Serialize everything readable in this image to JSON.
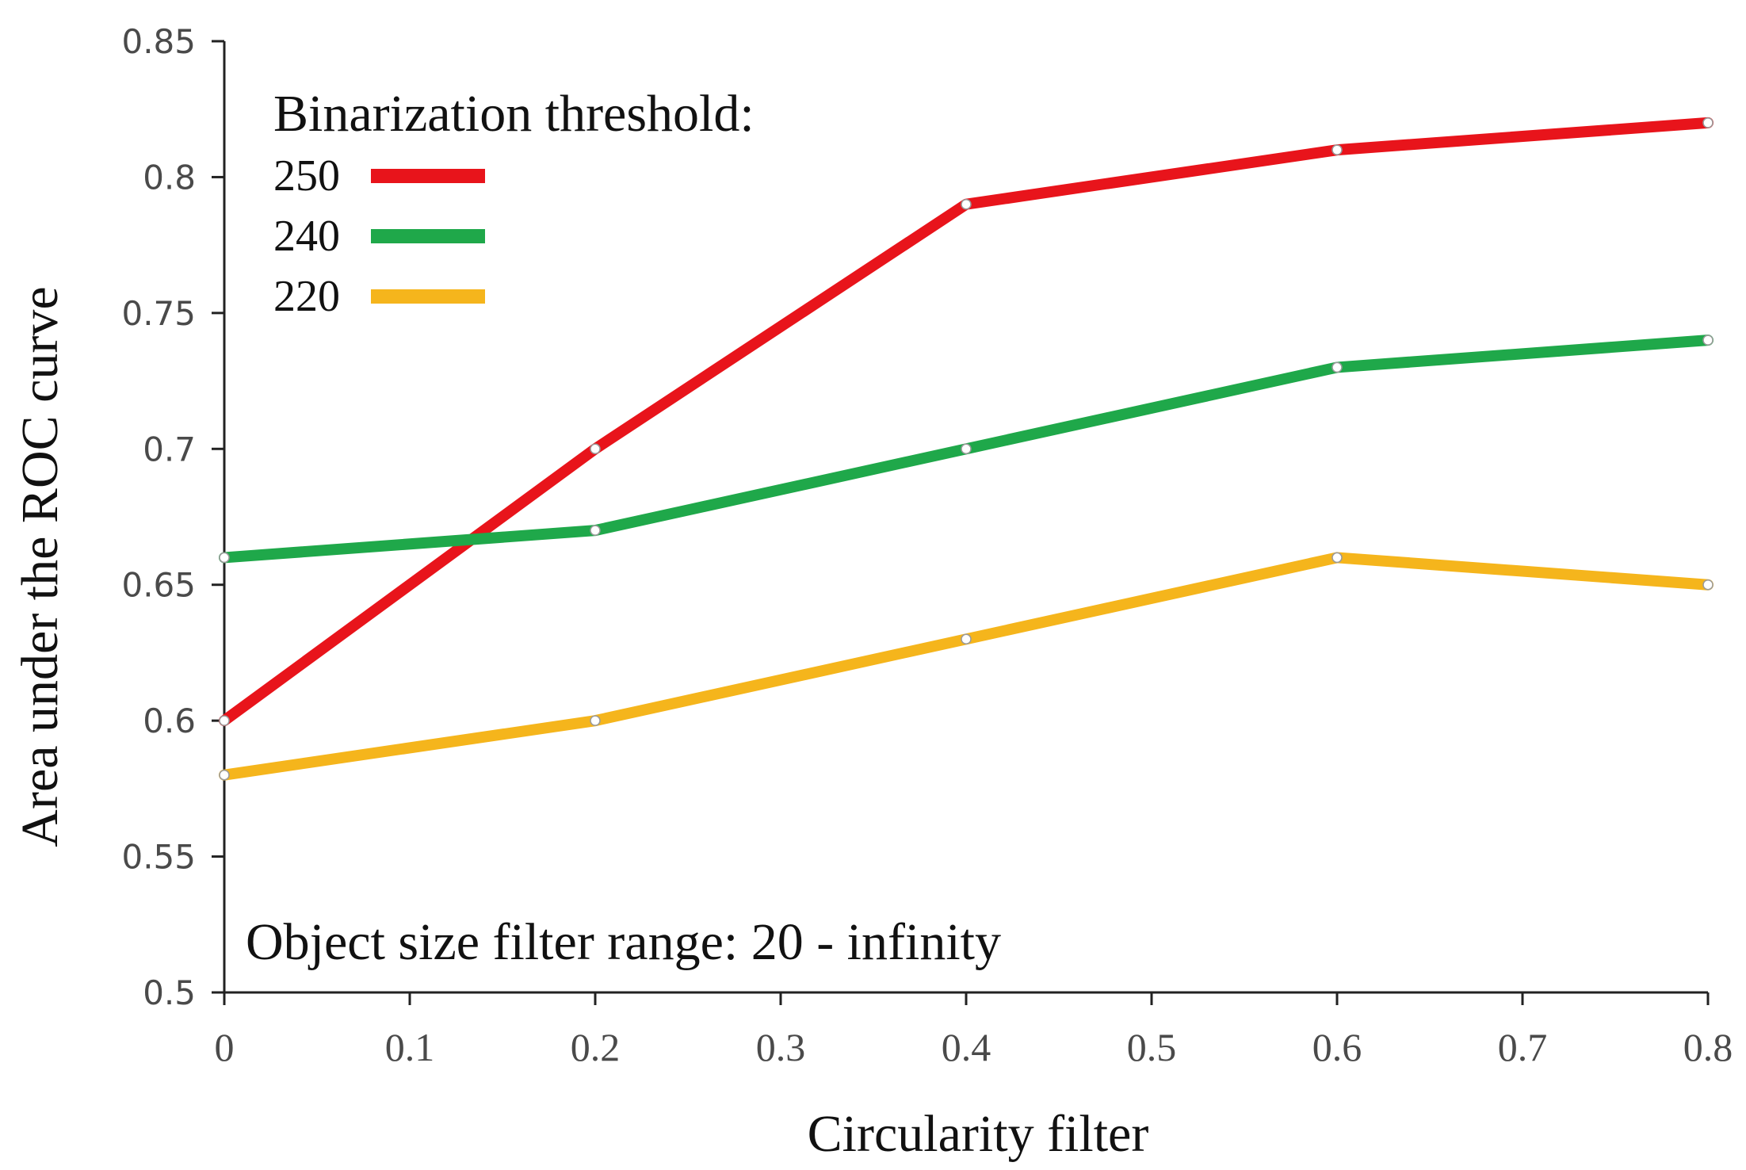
{
  "chart_data": {
    "type": "line",
    "title": "",
    "xlabel": "Circularity filter",
    "ylabel": "Area under the ROC curve",
    "x": [
      0,
      0.2,
      0.4,
      0.6,
      0.8
    ],
    "xlim": [
      0,
      0.8
    ],
    "ylim": [
      0.5,
      0.85
    ],
    "x_ticks": [
      "0",
      "0.1",
      "0.2",
      "0.3",
      "0.4",
      "0.5",
      "0.6",
      "0.7",
      "0.8"
    ],
    "y_ticks": [
      "0.5",
      "0.55",
      "0.6",
      "0.65",
      "0.7",
      "0.75",
      "0.8",
      "0.85"
    ],
    "grid": false,
    "legend_title": "Binarization threshold:",
    "legend_position": "top-left",
    "series": [
      {
        "name": "250",
        "color": "#e8141b",
        "values": [
          0.6,
          0.7,
          0.79,
          0.81,
          0.82
        ]
      },
      {
        "name": "240",
        "color": "#1fa84a",
        "values": [
          0.66,
          0.67,
          0.7,
          0.73,
          0.74
        ]
      },
      {
        "name": "220",
        "color": "#f5b51c",
        "values": [
          0.58,
          0.6,
          0.63,
          0.66,
          0.65
        ]
      }
    ],
    "annotation": "Object size filter range:  20 - infinity"
  }
}
